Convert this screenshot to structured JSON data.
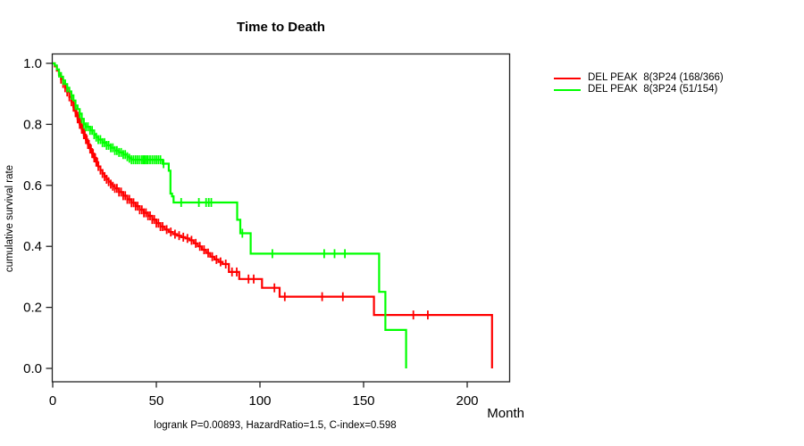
{
  "chart": {
    "title": "Time to Death",
    "xlabel": "Month",
    "ylabel": "cumulative survival rate",
    "caption": "logrank P=0.00893, HazardRatio=1.5, C-index=0.598"
  },
  "chart_data": {
    "type": "line",
    "subtype": "kaplan-meier-step",
    "title": "Time to Death",
    "xlabel": "Month",
    "ylabel": "cumulative survival rate",
    "xlim": [
      0,
      220
    ],
    "ylim": [
      0.0,
      1.0
    ],
    "x_ticks": [
      0,
      50,
      100,
      150,
      200
    ],
    "y_ticks": [
      1.0,
      0.8,
      0.6,
      0.4,
      0.2,
      0.0
    ],
    "grid": false,
    "legend_position": "right-outside",
    "annotation": "logrank P=0.00893, HazardRatio=1.5, C-index=0.598",
    "axis_color": "#222222",
    "series": [
      {
        "name": "DEL PEAK  8(3P24 (168/366)",
        "color": "#ff0000",
        "steps": [
          [
            0,
            1.0
          ],
          [
            1,
            0.99
          ],
          [
            2,
            0.976
          ],
          [
            3,
            0.962
          ],
          [
            4,
            0.948
          ],
          [
            5,
            0.934
          ],
          [
            6,
            0.92
          ],
          [
            7,
            0.906
          ],
          [
            8,
            0.89
          ],
          [
            9,
            0.874
          ],
          [
            10,
            0.856
          ],
          [
            11,
            0.838
          ],
          [
            12,
            0.818
          ],
          [
            13,
            0.8
          ],
          [
            14,
            0.784
          ],
          [
            15,
            0.766
          ],
          [
            16,
            0.75
          ],
          [
            17,
            0.734
          ],
          [
            18,
            0.719
          ],
          [
            19,
            0.704
          ],
          [
            20,
            0.69
          ],
          [
            21,
            0.676
          ],
          [
            22,
            0.662
          ],
          [
            23,
            0.65
          ],
          [
            24,
            0.639
          ],
          [
            25,
            0.629
          ],
          [
            26,
            0.62
          ],
          [
            27,
            0.612
          ],
          [
            28,
            0.604
          ],
          [
            29,
            0.597
          ],
          [
            30,
            0.59
          ],
          [
            32,
            0.578
          ],
          [
            34,
            0.566
          ],
          [
            36,
            0.554
          ],
          [
            38,
            0.543
          ],
          [
            40,
            0.532
          ],
          [
            42,
            0.52
          ],
          [
            44,
            0.51
          ],
          [
            46,
            0.5
          ],
          [
            48,
            0.488
          ],
          [
            50,
            0.476
          ],
          [
            52,
            0.465
          ],
          [
            54,
            0.455
          ],
          [
            56,
            0.447
          ],
          [
            58,
            0.44
          ],
          [
            60,
            0.435
          ],
          [
            62,
            0.43
          ],
          [
            64,
            0.426
          ],
          [
            66,
            0.42
          ],
          [
            68,
            0.41
          ],
          [
            70,
            0.4
          ],
          [
            72,
            0.389
          ],
          [
            74,
            0.378
          ],
          [
            76,
            0.366
          ],
          [
            78,
            0.357
          ],
          [
            80,
            0.349
          ],
          [
            82,
            0.342
          ],
          [
            85,
            0.316
          ],
          [
            90,
            0.293
          ],
          [
            101,
            0.264
          ],
          [
            109.5,
            0.235
          ],
          [
            155,
            0.175
          ],
          [
            212,
            0.0
          ]
        ],
        "censor_marks": [
          4,
          5,
          6,
          7,
          8,
          9,
          10,
          10.5,
          11,
          11.5,
          12,
          12.5,
          13,
          13.5,
          14,
          14.5,
          15,
          15.5,
          16,
          16.5,
          17,
          17.5,
          18,
          18.5,
          19,
          19.5,
          20,
          20.5,
          21,
          21.5,
          22,
          23,
          24,
          25,
          26,
          27,
          28,
          29,
          30,
          31,
          32,
          33,
          34,
          35,
          36,
          37,
          38,
          39,
          40,
          41,
          42,
          43,
          44,
          45,
          46,
          47,
          48,
          49,
          50,
          51,
          52,
          53,
          55,
          57,
          59,
          61,
          63,
          65,
          67,
          69,
          71,
          73,
          75,
          77,
          79,
          81,
          83.5,
          86.5,
          88.8,
          94.5,
          97,
          107,
          112,
          130,
          140,
          174,
          181
        ]
      },
      {
        "name": "DEL PEAK  8(3P24 (51/154)",
        "color": "#00ff00",
        "steps": [
          [
            0,
            1.0
          ],
          [
            1,
            0.993
          ],
          [
            2,
            0.98
          ],
          [
            3,
            0.968
          ],
          [
            4,
            0.956
          ],
          [
            5,
            0.944
          ],
          [
            6,
            0.932
          ],
          [
            7,
            0.92
          ],
          [
            8,
            0.908
          ],
          [
            9,
            0.895
          ],
          [
            10,
            0.878
          ],
          [
            11,
            0.862
          ],
          [
            12,
            0.85
          ],
          [
            13,
            0.835
          ],
          [
            14,
            0.818
          ],
          [
            15,
            0.8
          ],
          [
            16,
            0.792
          ],
          [
            18,
            0.78
          ],
          [
            20,
            0.766
          ],
          [
            21,
            0.758
          ],
          [
            22,
            0.75
          ],
          [
            24,
            0.74
          ],
          [
            26,
            0.731
          ],
          [
            28,
            0.723
          ],
          [
            30,
            0.714
          ],
          [
            32,
            0.708
          ],
          [
            34,
            0.701
          ],
          [
            36,
            0.694
          ],
          [
            37,
            0.689
          ],
          [
            38,
            0.684
          ],
          [
            53,
            0.671
          ],
          [
            56,
            0.648
          ],
          [
            56.8,
            0.573
          ],
          [
            57.6,
            0.564
          ],
          [
            58.3,
            0.544
          ],
          [
            89,
            0.487
          ],
          [
            90.5,
            0.443
          ],
          [
            95.5,
            0.376
          ],
          [
            157.5,
            0.251
          ],
          [
            160.5,
            0.126
          ],
          [
            170.5,
            0.0
          ]
        ],
        "censor_marks": [
          3,
          5,
          7,
          9,
          11,
          13,
          14,
          15,
          16,
          17,
          18,
          19,
          20,
          21,
          22,
          23,
          24,
          25,
          26,
          27,
          28,
          29,
          30,
          31,
          32,
          33,
          34,
          35,
          36,
          37,
          38,
          39,
          40,
          41,
          42,
          43,
          43.8,
          44.5,
          45.3,
          46,
          47,
          48,
          49,
          50,
          51,
          52,
          53.5,
          62,
          70.5,
          74,
          75.3,
          76.5,
          91.5,
          106,
          131,
          136,
          141
        ]
      }
    ]
  }
}
